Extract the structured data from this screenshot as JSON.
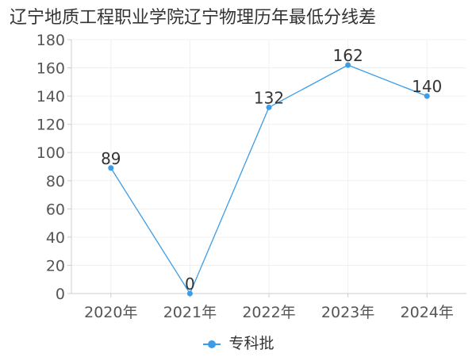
{
  "chart_data": {
    "type": "line",
    "title": "辽宁地质工程职业学院辽宁物理历年最低分线差",
    "categories": [
      "2020年",
      "2021年",
      "2022年",
      "2023年",
      "2024年"
    ],
    "series": [
      {
        "name": "专科批",
        "values": [
          89,
          0,
          132,
          162,
          140
        ],
        "color": "#3b9de8"
      }
    ],
    "ylim": [
      0,
      180
    ],
    "yticks": [
      0,
      20,
      40,
      60,
      80,
      100,
      120,
      140,
      160,
      180
    ],
    "grid": true,
    "legend": "bottom-center"
  }
}
